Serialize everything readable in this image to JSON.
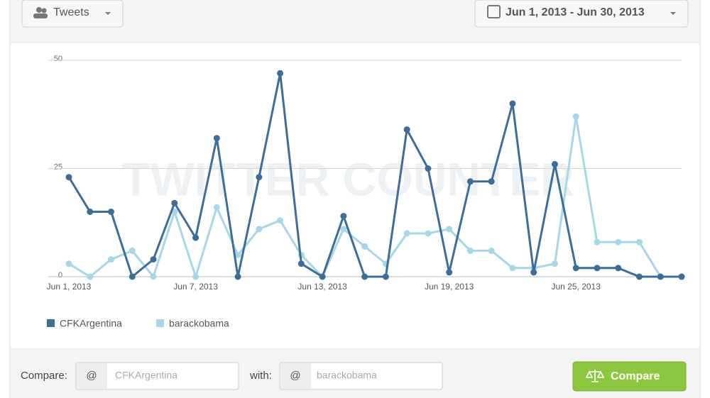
{
  "toolbar": {
    "metric_button": "Tweets",
    "date_range": "Jun 1, 2013 - Jun 30, 2013"
  },
  "chart_data": {
    "type": "line",
    "watermark": "TWITTER COUNTER",
    "categories": [
      "Jun 1, 2013",
      null,
      null,
      null,
      null,
      null,
      "Jun 7, 2013",
      null,
      null,
      null,
      null,
      null,
      "Jun 13, 2013",
      null,
      null,
      null,
      null,
      null,
      "Jun 19, 2013",
      null,
      null,
      null,
      null,
      null,
      "Jun 25, 2013",
      null,
      null,
      null,
      null,
      null
    ],
    "series": [
      {
        "name": "CFKArgentina",
        "color": "#3d6d99",
        "values": [
          23,
          15,
          15,
          0,
          4,
          17,
          9,
          32,
          0,
          23,
          47,
          3,
          0,
          14,
          0,
          0,
          34,
          25,
          1,
          22,
          22,
          40,
          1,
          26,
          2,
          2,
          2,
          0,
          0,
          0
        ]
      },
      {
        "name": "barackobama",
        "color": "#a6d7e8",
        "values": [
          3,
          0,
          4,
          6,
          0,
          15,
          0,
          16,
          5,
          11,
          13,
          5,
          0,
          11,
          7,
          3,
          10,
          10,
          11,
          6,
          6,
          2,
          2,
          3,
          37,
          8,
          8,
          8,
          0,
          0
        ]
      }
    ],
    "ylim": [
      0,
      50
    ],
    "yticks": [
      0,
      25,
      50
    ],
    "grid": true,
    "legend": "bottom-left"
  },
  "compare_form": {
    "compare_label": "Compare:",
    "at_symbol": "@",
    "first_placeholder": "CFKArgentina",
    "with_label": "with:",
    "second_placeholder": "barackobama",
    "button": "Compare"
  }
}
